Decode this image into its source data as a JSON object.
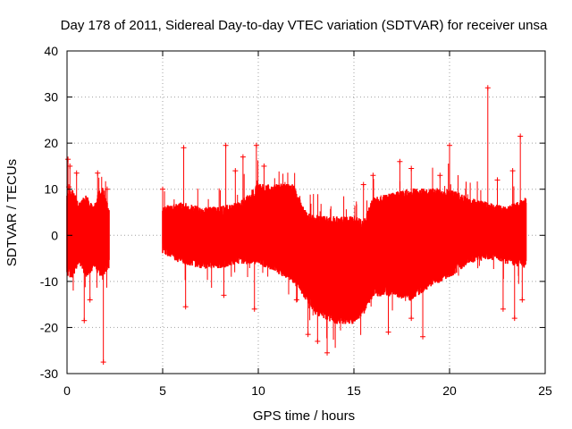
{
  "chart_data": {
    "type": "scatter",
    "title": "Day 178 of 2011, Sidereal Day-to-day VTEC variation (SDTVAR) for receiver unsa",
    "xlabel": "GPS time / hours",
    "ylabel": "SDTVAR / TECUs",
    "xlim": [
      0,
      25
    ],
    "ylim": [
      -30,
      40
    ],
    "xticks": [
      0,
      5,
      10,
      15,
      20,
      25
    ],
    "yticks": [
      -30,
      -20,
      -10,
      0,
      10,
      20,
      30,
      40
    ],
    "xtick_labels": [
      "0",
      "5",
      "10",
      "15",
      "20",
      "25"
    ],
    "ytick_labels": [
      "-30",
      "-20",
      "-10",
      "0",
      "10",
      "20",
      "30",
      "40"
    ],
    "grid": true,
    "marker": "+",
    "series": [
      {
        "name": "SDTVAR",
        "color": "#ff0000",
        "envelope": {
          "x": [
            0.0,
            0.3,
            0.6,
            1.0,
            1.4,
            1.8,
            2.2,
            5.0,
            6.0,
            7.0,
            8.0,
            9.0,
            10.0,
            11.0,
            11.8,
            12.5,
            13.0,
            14.0,
            15.0,
            15.5,
            16.0,
            17.0,
            18.0,
            19.0,
            20.0,
            21.0,
            22.0,
            23.0,
            24.0
          ],
          "upper": [
            8,
            9,
            6,
            8,
            5,
            10,
            5,
            5,
            6,
            5,
            5,
            6,
            10,
            10,
            10,
            4,
            3,
            3,
            3,
            2,
            7,
            8,
            9,
            9,
            9,
            7,
            6,
            5,
            7
          ],
          "lower": [
            -8,
            -8,
            -5,
            -8,
            -6,
            -8,
            -6,
            -3,
            -5,
            -6,
            -6,
            -5,
            -5,
            -7,
            -9,
            -13,
            -16,
            -18,
            -18,
            -16,
            -12,
            -12,
            -13,
            -10,
            -8,
            -5,
            -4,
            -5,
            -6
          ]
        },
        "outliers": [
          {
            "x": 0.05,
            "y": 16.5
          },
          {
            "x": 0.15,
            "y": 15
          },
          {
            "x": 0.5,
            "y": 13.5
          },
          {
            "x": 0.1,
            "y": 10.5
          },
          {
            "x": 0.9,
            "y": -18.5
          },
          {
            "x": 1.2,
            "y": -14
          },
          {
            "x": 1.6,
            "y": 13.5
          },
          {
            "x": 1.9,
            "y": -27.5
          },
          {
            "x": 2.1,
            "y": 10
          },
          {
            "x": 5.0,
            "y": 10
          },
          {
            "x": 6.1,
            "y": 19
          },
          {
            "x": 6.2,
            "y": -15.5
          },
          {
            "x": 8.3,
            "y": 19.5
          },
          {
            "x": 8.2,
            "y": -13
          },
          {
            "x": 8.8,
            "y": 14
          },
          {
            "x": 9.2,
            "y": 17
          },
          {
            "x": 9.9,
            "y": 19.5
          },
          {
            "x": 9.8,
            "y": -16
          },
          {
            "x": 10.3,
            "y": 15
          },
          {
            "x": 12.0,
            "y": -14
          },
          {
            "x": 12.6,
            "y": -21.5
          },
          {
            "x": 13.1,
            "y": -23
          },
          {
            "x": 13.6,
            "y": -25.5
          },
          {
            "x": 14.5,
            "y": -17
          },
          {
            "x": 15.5,
            "y": 11
          },
          {
            "x": 16.0,
            "y": 13
          },
          {
            "x": 16.8,
            "y": -21
          },
          {
            "x": 17.4,
            "y": 16
          },
          {
            "x": 18.0,
            "y": 14.5
          },
          {
            "x": 18.0,
            "y": -18
          },
          {
            "x": 18.6,
            "y": -22
          },
          {
            "x": 19.5,
            "y": 13
          },
          {
            "x": 20.0,
            "y": 19.5
          },
          {
            "x": 22.0,
            "y": 32
          },
          {
            "x": 22.5,
            "y": 12
          },
          {
            "x": 22.8,
            "y": -16
          },
          {
            "x": 23.4,
            "y": -18
          },
          {
            "x": 23.7,
            "y": 21.5
          },
          {
            "x": 23.8,
            "y": -14
          },
          {
            "x": 23.3,
            "y": 14
          }
        ]
      }
    ]
  }
}
